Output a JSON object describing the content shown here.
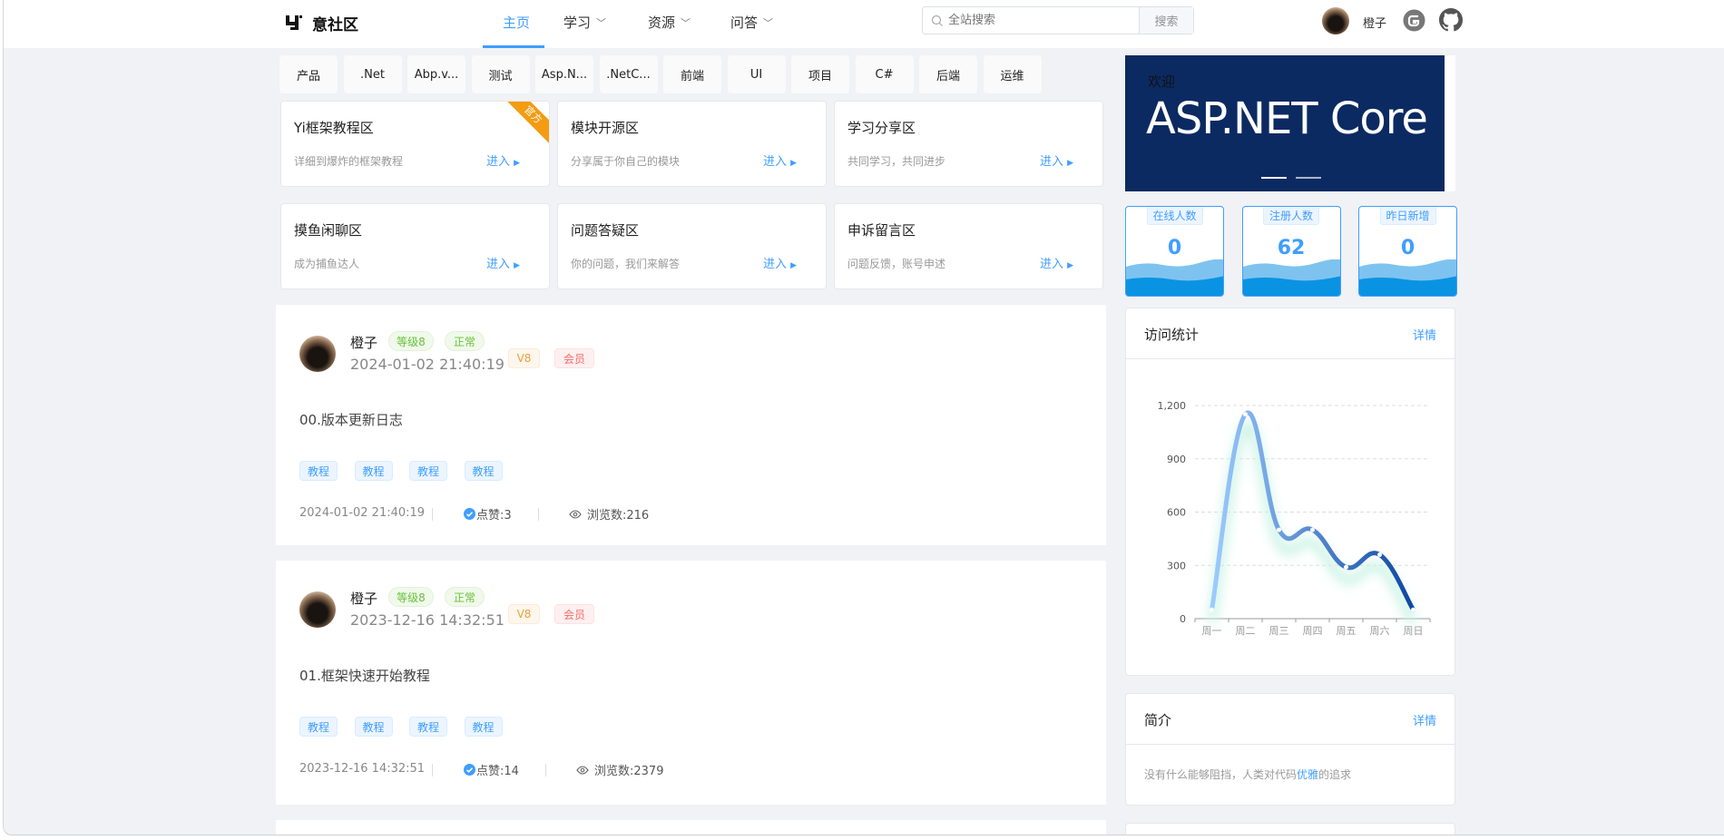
{
  "header": {
    "logo": "意社区",
    "nav": [
      {
        "label": "主页",
        "active": true
      },
      {
        "label": "学习",
        "dropdown": true
      },
      {
        "label": "资源",
        "dropdown": true
      },
      {
        "label": "问答",
        "dropdown": true
      }
    ],
    "search_placeholder": "全站搜索",
    "search_button": "搜索",
    "user_name": "橙子",
    "icons": [
      "gitee-icon",
      "github-icon"
    ]
  },
  "categories": [
    "产品",
    ".Net",
    "Abp.v...",
    "测试",
    "Asp.N...",
    ".NetC...",
    "前端",
    "UI",
    "项目",
    "C#",
    "后端",
    "运维"
  ],
  "sections": [
    {
      "title": "Yi框架教程区",
      "desc": "详细到爆炸的框架教程",
      "enter": "进入",
      "ribbon": "官方"
    },
    {
      "title": "模块开源区",
      "desc": "分享属于你自己的模块",
      "enter": "进入"
    },
    {
      "title": "学习分享区",
      "desc": "共同学习，共同进步",
      "enter": "进入"
    },
    {
      "title": "摸鱼闲聊区",
      "desc": "成为捕鱼达人",
      "enter": "进入"
    },
    {
      "title": "问题答疑区",
      "desc": "你的问题，我们来解答",
      "enter": "进入"
    },
    {
      "title": "申诉留言区",
      "desc": "问题反馈，账号申述",
      "enter": "进入"
    }
  ],
  "posts": [
    {
      "author": "橙子",
      "level": "等级8",
      "status": "正常",
      "vip": "V8",
      "member": "会员",
      "date": "2024-01-02 21:40:19",
      "title": "00.版本更新日志",
      "tags": [
        "教程",
        "教程",
        "教程",
        "教程"
      ],
      "likes": "点赞:3",
      "views": "浏览数:216"
    },
    {
      "author": "橙子",
      "level": "等级8",
      "status": "正常",
      "vip": "V8",
      "member": "会员",
      "date": "2023-12-16 14:32:51",
      "title": "01.框架快速开始教程",
      "tags": [
        "教程",
        "教程",
        "教程",
        "教程"
      ],
      "likes": "点赞:14",
      "views": "浏览数:2379"
    }
  ],
  "banner": {
    "welcome": "欢迎",
    "text": "ASP.NET Core",
    "slides": 2
  },
  "stats": [
    {
      "label": "在线人数",
      "value": "0"
    },
    {
      "label": "注册人数",
      "value": "62"
    },
    {
      "label": "昨日新增",
      "value": "0"
    }
  ],
  "visits": {
    "title": "访问统计",
    "more": "详情"
  },
  "intro": {
    "title": "简介",
    "more": "详情",
    "text_before": "没有什么能够阻挡，人类对代码",
    "highlight": "优雅",
    "text_after": "的追求"
  },
  "chart_data": {
    "type": "line",
    "smooth": true,
    "categories": [
      "周一",
      "周二",
      "周三",
      "周四",
      "周五",
      "周六",
      "周日"
    ],
    "values": [
      50,
      1150,
      500,
      500,
      290,
      360,
      50
    ],
    "yticks": [
      "0",
      "300",
      "600",
      "900",
      "1,200"
    ],
    "ylim": [
      0,
      1200
    ],
    "grid": true,
    "colors": [
      "#9ecbff",
      "#0d47a1"
    ]
  }
}
